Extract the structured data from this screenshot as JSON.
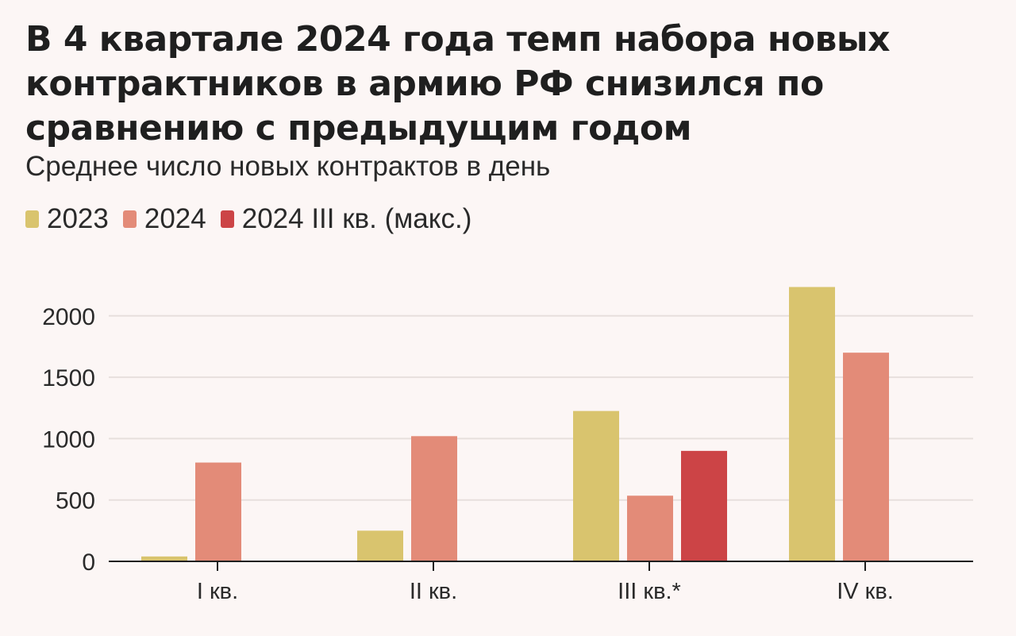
{
  "chart_data": {
    "type": "bar",
    "title": "В 4 квартале 2024 года темп набора новых контрактников в армию РФ снизился по сравнению с предыдущим годом",
    "subtitle": "Среднее число новых контрактов в день",
    "xlabel": "",
    "ylabel": "",
    "ylim": [
      0,
      2300
    ],
    "yticks": [
      0,
      500,
      1000,
      1500,
      2000
    ],
    "grid": true,
    "legend_position": "top-left",
    "categories": [
      "I кв.",
      "II кв.",
      "III кв.*",
      "IV кв."
    ],
    "series": [
      {
        "name": "2023",
        "color": "#d9c46e",
        "values": [
          40,
          250,
          1225,
          2235
        ]
      },
      {
        "name": "2024",
        "color": "#e38b78",
        "values": [
          805,
          1020,
          535,
          1700
        ]
      },
      {
        "name": "2024 III кв. (макс.)",
        "color": "#cc4446",
        "values": [
          null,
          null,
          900,
          null
        ]
      }
    ]
  }
}
